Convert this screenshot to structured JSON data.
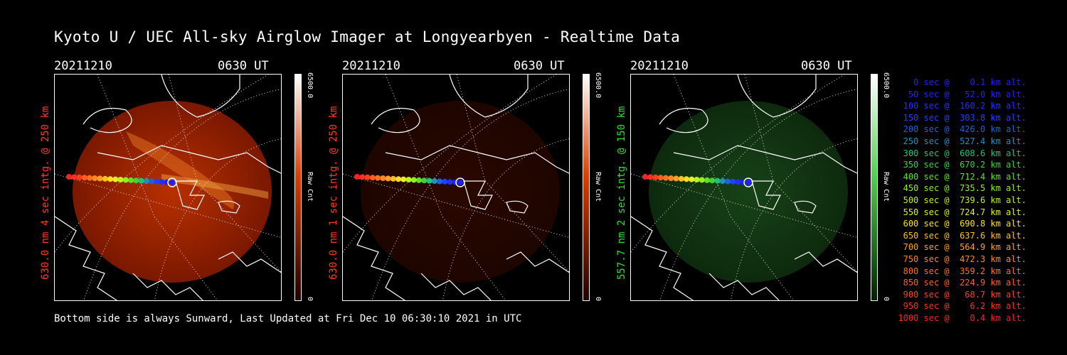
{
  "title": "Kyoto U / UEC All-sky Airglow Imager at Longyearbyen - Realtime Data",
  "panels": [
    {
      "date": "20211210",
      "time": "0630 UT",
      "ylabel": "630.0 nm 4 sec intg. @ 250 km",
      "label_color": "#ff3a20",
      "cbar_max": "6500.0",
      "cbar_min": "0",
      "cbar_unit": "Raw Cnt",
      "cbar_color": "#d84000",
      "glow": "red",
      "intensity": "bright"
    },
    {
      "date": "20211210",
      "time": "0630 UT",
      "ylabel": "630.0 nm 1 sec intg. @ 250 km",
      "label_color": "#ff3a20",
      "cbar_max": "6500.0",
      "cbar_min": "0",
      "cbar_unit": "Raw Cnt",
      "cbar_color": "#d84000",
      "glow": "red",
      "intensity": "dim"
    },
    {
      "date": "20211210",
      "time": "0630 UT",
      "ylabel": "557.7 nm 2 sec intg. @ 150 km",
      "label_color": "#33dd33",
      "cbar_max": "6500.0",
      "cbar_min": "0",
      "cbar_unit": "Raw Cnt",
      "cbar_color": "#40c040",
      "glow": "green",
      "intensity": "dim"
    }
  ],
  "footer": "Bottom side is always Sunward, Last Updated at Fri Dec 10 06:30:10 2021 in UTC",
  "legend": [
    {
      "text": "   0 sec @    0.1 km alt.",
      "color": "#2020ff"
    },
    {
      "text": "  50 sec @   52.0 km alt.",
      "color": "#2020ff"
    },
    {
      "text": " 100 sec @  160.2 km alt.",
      "color": "#2030ff"
    },
    {
      "text": " 150 sec @  303.8 km alt.",
      "color": "#2040ff"
    },
    {
      "text": " 200 sec @  426.0 km alt.",
      "color": "#2060e0"
    },
    {
      "text": " 250 sec @  527.4 km alt.",
      "color": "#2090c0"
    },
    {
      "text": " 300 sec @  608.6 km alt.",
      "color": "#20c080"
    },
    {
      "text": " 350 sec @  670.2 km alt.",
      "color": "#40d040"
    },
    {
      "text": " 400 sec @  712.4 km alt.",
      "color": "#60e020"
    },
    {
      "text": " 450 sec @  735.5 km alt.",
      "color": "#90f020"
    },
    {
      "text": " 500 sec @  739.6 km alt.",
      "color": "#c0f020"
    },
    {
      "text": " 550 sec @  724.7 km alt.",
      "color": "#e0f020"
    },
    {
      "text": " 600 sec @  690.8 km alt.",
      "color": "#ffe020"
    },
    {
      "text": " 650 sec @  637.6 km alt.",
      "color": "#ffc020"
    },
    {
      "text": " 700 sec @  564.9 km alt.",
      "color": "#ffa020"
    },
    {
      "text": " 750 sec @  472.3 km alt.",
      "color": "#ff8820"
    },
    {
      "text": " 800 sec @  359.2 km alt.",
      "color": "#ff7020"
    },
    {
      "text": " 850 sec @  224.9 km alt.",
      "color": "#ff6020"
    },
    {
      "text": " 900 sec @   68.7 km alt.",
      "color": "#ff4020"
    },
    {
      "text": " 950 sec @    6.2 km alt.",
      "color": "#ff3020"
    },
    {
      "text": "1000 sec @    0.4 km alt.",
      "color": "#ff2020"
    }
  ]
}
